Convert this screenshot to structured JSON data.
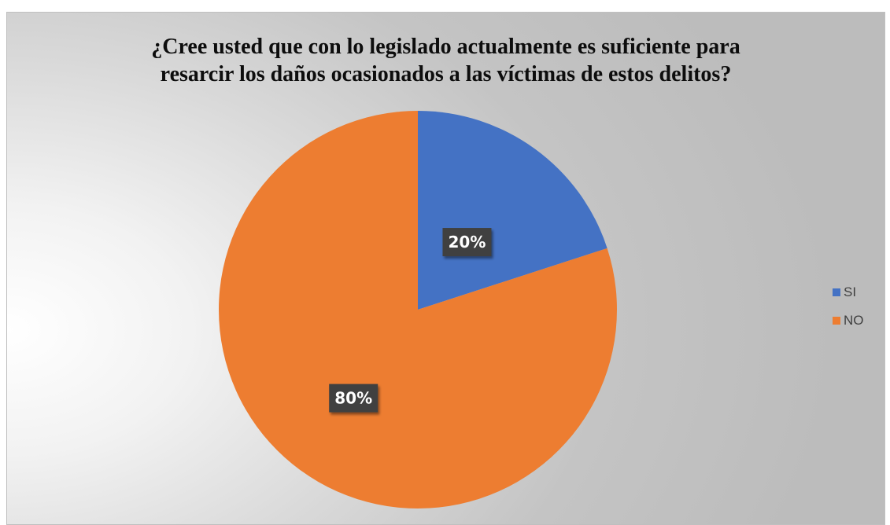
{
  "chart_data": {
    "type": "pie",
    "title_lines": [
      "¿Cree usted que con lo legislado actualmente es suficiente para",
      "resarcir los daños ocasionados a las víctimas de estos delitos?"
    ],
    "categories": [
      "SI",
      "NO"
    ],
    "values": [
      20,
      80
    ],
    "data_labels": [
      "20%",
      "80%"
    ],
    "colors": [
      "#4472C4",
      "#ED7D31"
    ],
    "legend_position": "right"
  }
}
